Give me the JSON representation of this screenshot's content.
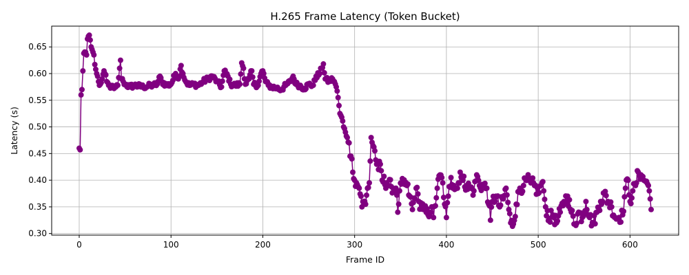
{
  "chart_data": {
    "type": "line",
    "title": "H.265 Frame Latency (Token Bucket)",
    "xlabel": "Frame ID",
    "ylabel": "Latency (s)",
    "xlim": [
      -30,
      653
    ],
    "ylim": [
      0.297,
      0.689
    ],
    "xticks": [
      0,
      100,
      200,
      300,
      400,
      500,
      600
    ],
    "yticks": [
      0.3,
      0.35,
      0.4,
      0.45,
      0.5,
      0.55,
      0.6,
      0.65
    ],
    "grid": true,
    "line_color": "#800080",
    "marker": "circle",
    "series": [
      {
        "anchors": [
          [
            0,
            0.46
          ],
          [
            1,
            0.457
          ],
          [
            2,
            0.56
          ],
          [
            3,
            0.57
          ],
          [
            4,
            0.605
          ],
          [
            5,
            0.638
          ],
          [
            7,
            0.64
          ],
          [
            8,
            0.635
          ],
          [
            9,
            0.665
          ],
          [
            10,
            0.67
          ],
          [
            11,
            0.672
          ],
          [
            12,
            0.663
          ],
          [
            13,
            0.65
          ],
          [
            14,
            0.645
          ],
          [
            15,
            0.64
          ],
          [
            16,
            0.635
          ],
          [
            17,
            0.617
          ],
          [
            18,
            0.608
          ],
          [
            19,
            0.6
          ],
          [
            20,
            0.595
          ],
          [
            21,
            0.585
          ],
          [
            22,
            0.578
          ],
          [
            23,
            0.58
          ],
          [
            25,
            0.59
          ],
          [
            27,
            0.605
          ],
          [
            28,
            0.6
          ],
          [
            30,
            0.585
          ],
          [
            32,
            0.578
          ],
          [
            35,
            0.575
          ],
          [
            38,
            0.572
          ],
          [
            40,
            0.575
          ],
          [
            42,
            0.578
          ],
          [
            44,
            0.61
          ],
          [
            45,
            0.625
          ],
          [
            46,
            0.59
          ],
          [
            48,
            0.585
          ],
          [
            50,
            0.58
          ],
          [
            55,
            0.575
          ],
          [
            60,
            0.578
          ],
          [
            70,
            0.575
          ],
          [
            80,
            0.578
          ],
          [
            85,
            0.58
          ],
          [
            88,
            0.595
          ],
          [
            90,
            0.585
          ],
          [
            95,
            0.578
          ],
          [
            100,
            0.58
          ],
          [
            105,
            0.6
          ],
          [
            108,
            0.59
          ],
          [
            111,
            0.615
          ],
          [
            113,
            0.6
          ],
          [
            116,
            0.585
          ],
          [
            120,
            0.578
          ],
          [
            125,
            0.58
          ],
          [
            130,
            0.578
          ],
          [
            135,
            0.585
          ],
          [
            140,
            0.59
          ],
          [
            145,
            0.595
          ],
          [
            150,
            0.585
          ],
          [
            155,
            0.575
          ],
          [
            158,
            0.605
          ],
          [
            162,
            0.595
          ],
          [
            165,
            0.58
          ],
          [
            170,
            0.578
          ],
          [
            175,
            0.58
          ],
          [
            177,
            0.62
          ],
          [
            179,
            0.61
          ],
          [
            181,
            0.58
          ],
          [
            185,
            0.59
          ],
          [
            188,
            0.605
          ],
          [
            190,
            0.58
          ],
          [
            195,
            0.578
          ],
          [
            198,
            0.6
          ],
          [
            200,
            0.605
          ],
          [
            203,
            0.585
          ],
          [
            206,
            0.578
          ],
          [
            210,
            0.575
          ],
          [
            215,
            0.573
          ],
          [
            220,
            0.57
          ],
          [
            225,
            0.578
          ],
          [
            230,
            0.585
          ],
          [
            233,
            0.595
          ],
          [
            236,
            0.58
          ],
          [
            240,
            0.578
          ],
          [
            245,
            0.572
          ],
          [
            250,
            0.58
          ],
          [
            255,
            0.578
          ],
          [
            258,
            0.595
          ],
          [
            262,
            0.6
          ],
          [
            264,
            0.61
          ],
          [
            266,
            0.618
          ],
          [
            268,
            0.59
          ],
          [
            272,
            0.585
          ],
          [
            276,
            0.59
          ],
          [
            278,
            0.585
          ],
          [
            280,
            0.575
          ],
          [
            282,
            0.555
          ],
          [
            283,
            0.54
          ],
          [
            284,
            0.525
          ],
          [
            286,
            0.518
          ],
          [
            288,
            0.5
          ],
          [
            290,
            0.49
          ],
          [
            292,
            0.48
          ],
          [
            294,
            0.47
          ],
          [
            295,
            0.445
          ],
          [
            297,
            0.44
          ],
          [
            298,
            0.415
          ],
          [
            300,
            0.4
          ],
          [
            302,
            0.395
          ],
          [
            305,
            0.385
          ],
          [
            307,
            0.37
          ],
          [
            308,
            0.35
          ],
          [
            310,
            0.36
          ],
          [
            312,
            0.355
          ],
          [
            314,
            0.385
          ],
          [
            316,
            0.395
          ],
          [
            318,
            0.48
          ],
          [
            320,
            0.465
          ],
          [
            322,
            0.455
          ],
          [
            324,
            0.43
          ],
          [
            326,
            0.42
          ],
          [
            328,
            0.43
          ],
          [
            330,
            0.4
          ],
          [
            335,
            0.395
          ],
          [
            340,
            0.388
          ],
          [
            345,
            0.385
          ],
          [
            347,
            0.34
          ],
          [
            349,
            0.38
          ],
          [
            353,
            0.395
          ],
          [
            357,
            0.39
          ],
          [
            360,
            0.37
          ],
          [
            363,
            0.345
          ],
          [
            367,
            0.385
          ],
          [
            370,
            0.36
          ],
          [
            375,
            0.345
          ],
          [
            380,
            0.335
          ],
          [
            384,
            0.35
          ],
          [
            386,
            0.33
          ],
          [
            390,
            0.385
          ],
          [
            393,
            0.41
          ],
          [
            396,
            0.395
          ],
          [
            398,
            0.355
          ],
          [
            400,
            0.33
          ],
          [
            402,
            0.37
          ],
          [
            405,
            0.405
          ],
          [
            408,
            0.39
          ],
          [
            412,
            0.385
          ],
          [
            415,
            0.415
          ],
          [
            418,
            0.4
          ],
          [
            422,
            0.39
          ],
          [
            426,
            0.385
          ],
          [
            430,
            0.38
          ],
          [
            433,
            0.41
          ],
          [
            436,
            0.39
          ],
          [
            440,
            0.39
          ],
          [
            444,
            0.385
          ],
          [
            446,
            0.355
          ],
          [
            448,
            0.325
          ],
          [
            450,
            0.36
          ],
          [
            454,
            0.37
          ],
          [
            458,
            0.35
          ],
          [
            462,
            0.365
          ],
          [
            465,
            0.385
          ],
          [
            468,
            0.345
          ],
          [
            470,
            0.32
          ],
          [
            473,
            0.318
          ],
          [
            476,
            0.355
          ],
          [
            480,
            0.385
          ],
          [
            484,
            0.39
          ],
          [
            488,
            0.4
          ],
          [
            492,
            0.395
          ],
          [
            496,
            0.39
          ],
          [
            500,
            0.375
          ],
          [
            504,
            0.395
          ],
          [
            506,
            0.38
          ],
          [
            508,
            0.35
          ],
          [
            512,
            0.328
          ],
          [
            516,
            0.335
          ],
          [
            520,
            0.32
          ],
          [
            524,
            0.34
          ],
          [
            528,
            0.36
          ],
          [
            532,
            0.37
          ],
          [
            536,
            0.34
          ],
          [
            540,
            0.318
          ],
          [
            544,
            0.34
          ],
          [
            548,
            0.33
          ],
          [
            552,
            0.36
          ],
          [
            556,
            0.33
          ],
          [
            560,
            0.318
          ],
          [
            564,
            0.34
          ],
          [
            568,
            0.36
          ],
          [
            572,
            0.375
          ],
          [
            576,
            0.36
          ],
          [
            580,
            0.35
          ],
          [
            584,
            0.33
          ],
          [
            588,
            0.33
          ],
          [
            592,
            0.335
          ],
          [
            595,
            0.385
          ],
          [
            598,
            0.4
          ],
          [
            600,
            0.36
          ],
          [
            603,
            0.38
          ],
          [
            606,
            0.39
          ],
          [
            609,
            0.415
          ],
          [
            612,
            0.41
          ],
          [
            615,
            0.4
          ],
          [
            618,
            0.398
          ],
          [
            620,
            0.39
          ],
          [
            621,
            0.38
          ],
          [
            622,
            0.365
          ],
          [
            623,
            0.345
          ]
        ]
      }
    ]
  }
}
